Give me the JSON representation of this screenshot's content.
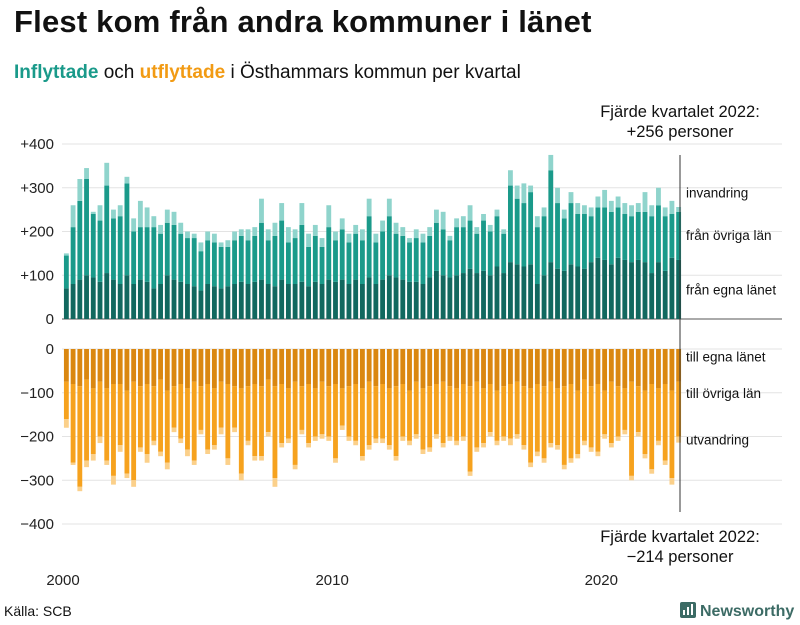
{
  "title": "Flest kom från andra kommuner i länet",
  "subtitle": {
    "in_word": "Inflyttade",
    "and_word": "och",
    "out_word": "utflyttade",
    "rest": "i Östhammars kommun per kvartal"
  },
  "note_top": {
    "line1": "Fjärde kvartalet 2022:",
    "line2": "+256 personer"
  },
  "note_bottom": {
    "line1": "Fjärde kvartalet 2022:",
    "line2": "−214 personer"
  },
  "source": "Källa: SCB",
  "brand": "Newsworthy",
  "colors": {
    "in_same_county": "#11685f",
    "in_other_county": "#1a9a8a",
    "in_immigration": "#8fd4cc",
    "out_same_county": "#da8710",
    "out_other_county": "#f6a21e",
    "out_emigration": "#fbd08a",
    "grid": "#e3e3e3",
    "subtitle_in": "#1a9a8a",
    "subtitle_out": "#f29b14"
  },
  "chart_data": {
    "type": "bar",
    "stacked": true,
    "title": "Flest kom från andra kommuner i länet",
    "subtitle": "Inflyttade och utflyttade i Östhammars kommun per kvartal",
    "quarter_start": "2000 Q1",
    "quarter_end": "2022 Q4",
    "n_quarters": 92,
    "y_ticks": [
      "+400",
      "+300",
      "+200",
      "+100",
      "0",
      "0",
      "−100",
      "−200",
      "−300",
      "−400"
    ],
    "x_ticks": [
      "2000",
      "2010",
      "2020"
    ],
    "series_labels": {
      "invandring": "invandring",
      "fran_ovriga_lan": "från övriga län",
      "fran_egna_lanet": "från egna länet",
      "till_egna_lanet": "till egna länet",
      "till_ovriga_lan": "till övriga län",
      "utvandring": "utvandring"
    },
    "in_total": [
      150,
      260,
      320,
      345,
      245,
      260,
      357,
      250,
      260,
      325,
      230,
      270,
      255,
      235,
      215,
      250,
      245,
      220,
      200,
      195,
      175,
      200,
      195,
      175,
      180,
      200,
      205,
      205,
      210,
      275,
      205,
      220,
      265,
      210,
      205,
      265,
      195,
      215,
      185,
      260,
      200,
      230,
      195,
      215,
      205,
      275,
      195,
      225,
      275,
      220,
      210,
      185,
      205,
      195,
      210,
      250,
      245,
      190,
      230,
      235,
      260,
      210,
      240,
      215,
      250,
      205,
      340,
      305,
      310,
      305,
      235,
      255,
      375,
      300,
      250,
      290,
      265,
      260,
      255,
      280,
      295,
      270,
      280,
      265,
      260,
      265,
      290,
      260,
      300,
      255,
      270,
      256
    ],
    "in_same_county": [
      70,
      80,
      90,
      100,
      95,
      85,
      105,
      90,
      80,
      100,
      80,
      90,
      85,
      70,
      80,
      100,
      90,
      85,
      80,
      75,
      65,
      80,
      75,
      70,
      75,
      80,
      85,
      80,
      85,
      90,
      80,
      75,
      90,
      80,
      80,
      85,
      75,
      85,
      80,
      90,
      85,
      90,
      80,
      90,
      80,
      95,
      80,
      90,
      100,
      95,
      90,
      85,
      85,
      80,
      95,
      110,
      100,
      95,
      100,
      105,
      115,
      105,
      110,
      100,
      120,
      105,
      130,
      125,
      120,
      125,
      80,
      100,
      130,
      115,
      110,
      125,
      120,
      115,
      130,
      140,
      135,
      125,
      140,
      135,
      130,
      135,
      130,
      105,
      130,
      110,
      140,
      135
    ],
    "in_other_county": [
      75,
      130,
      180,
      220,
      145,
      140,
      200,
      140,
      155,
      210,
      120,
      120,
      125,
      140,
      115,
      120,
      125,
      110,
      105,
      110,
      90,
      100,
      100,
      95,
      90,
      100,
      105,
      100,
      105,
      130,
      100,
      115,
      135,
      95,
      105,
      130,
      90,
      105,
      85,
      120,
      95,
      115,
      95,
      105,
      100,
      140,
      95,
      110,
      135,
      100,
      100,
      90,
      100,
      95,
      95,
      110,
      105,
      85,
      110,
      105,
      110,
      90,
      115,
      100,
      115,
      90,
      175,
      150,
      145,
      165,
      130,
      135,
      210,
      150,
      120,
      140,
      120,
      125,
      105,
      115,
      120,
      120,
      115,
      105,
      105,
      110,
      115,
      130,
      130,
      125,
      100,
      110
    ],
    "out_total": [
      180,
      265,
      325,
      270,
      255,
      215,
      265,
      310,
      235,
      295,
      315,
      235,
      260,
      220,
      245,
      275,
      190,
      215,
      245,
      265,
      195,
      240,
      230,
      195,
      265,
      190,
      300,
      220,
      255,
      255,
      200,
      315,
      225,
      215,
      275,
      195,
      225,
      210,
      205,
      210,
      260,
      185,
      210,
      220,
      255,
      230,
      215,
      215,
      230,
      255,
      210,
      220,
      205,
      240,
      235,
      205,
      225,
      210,
      220,
      210,
      290,
      235,
      225,
      200,
      220,
      210,
      220,
      205,
      230,
      270,
      245,
      260,
      225,
      230,
      275,
      260,
      250,
      220,
      235,
      245,
      205,
      225,
      210,
      195,
      300,
      200,
      250,
      285,
      220,
      265,
      310,
      214
    ],
    "out_same_county": [
      75,
      80,
      85,
      70,
      90,
      75,
      90,
      80,
      80,
      95,
      75,
      85,
      80,
      85,
      70,
      95,
      85,
      80,
      90,
      75,
      85,
      80,
      90,
      75,
      80,
      85,
      90,
      85,
      80,
      85,
      70,
      85,
      80,
      90,
      75,
      85,
      80,
      90,
      75,
      85,
      80,
      90,
      85,
      80,
      90,
      75,
      85,
      80,
      90,
      85,
      80,
      95,
      75,
      90,
      85,
      80,
      75,
      85,
      90,
      80,
      85,
      75,
      90,
      80,
      95,
      85,
      80,
      75,
      85,
      90,
      80,
      85,
      75,
      90,
      85,
      80,
      95,
      70,
      85,
      80,
      95,
      75,
      85,
      90,
      75,
      85,
      95,
      80,
      90,
      80,
      95,
      75
    ],
    "out_other_county": [
      85,
      180,
      230,
      185,
      150,
      125,
      165,
      210,
      140,
      190,
      225,
      140,
      160,
      125,
      165,
      165,
      95,
      125,
      140,
      180,
      100,
      150,
      130,
      105,
      170,
      95,
      195,
      125,
      165,
      160,
      120,
      210,
      135,
      115,
      190,
      100,
      135,
      110,
      120,
      115,
      170,
      85,
      115,
      130,
      155,
      145,
      120,
      125,
      130,
      160,
      120,
      115,
      120,
      140,
      140,
      115,
      140,
      115,
      120,
      120,
      195,
      150,
      125,
      110,
      115,
      115,
      125,
      120,
      135,
      170,
      155,
      165,
      140,
      130,
      180,
      170,
      145,
      140,
      140,
      155,
      100,
      140,
      115,
      95,
      215,
      105,
      145,
      195,
      120,
      175,
      200,
      125
    ]
  }
}
